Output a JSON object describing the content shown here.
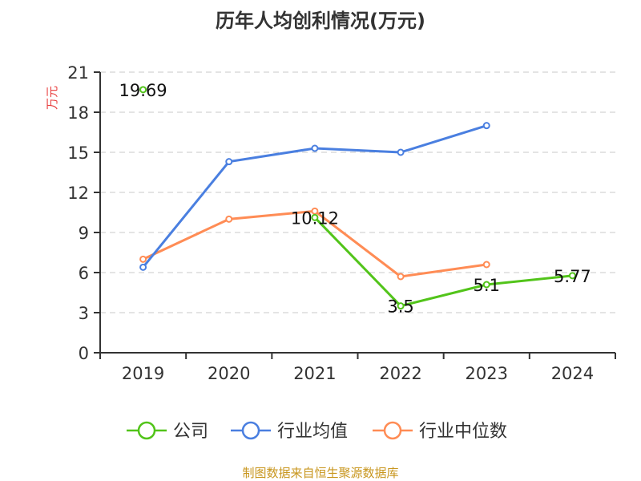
{
  "chart_data": {
    "type": "line",
    "title": "历年人均创利情况(万元)",
    "ylabel": "万元",
    "xlabel": "",
    "categories": [
      "2019",
      "2020",
      "2021",
      "2022",
      "2023",
      "2024"
    ],
    "ylim": [
      0,
      21
    ],
    "yticks": [
      0,
      3,
      6,
      9,
      12,
      15,
      18,
      21
    ],
    "grid": true,
    "legend_position": "bottom",
    "series": [
      {
        "name": "公司",
        "color": "#52c41a",
        "values": [
          19.69,
          null,
          10.12,
          3.5,
          5.1,
          5.77
        ],
        "labels": [
          "19.69",
          "",
          "10.12",
          "3.5",
          "5.1",
          "5.77"
        ]
      },
      {
        "name": "行业均值",
        "color": "#4a7fe0",
        "values": [
          6.4,
          14.3,
          15.3,
          15.0,
          17.0,
          null
        ]
      },
      {
        "name": "行业中位数",
        "color": "#ff8c55",
        "values": [
          7.0,
          10.0,
          10.6,
          5.7,
          6.6,
          null
        ]
      }
    ]
  },
  "source": "制图数据来自恒生聚源数据库"
}
